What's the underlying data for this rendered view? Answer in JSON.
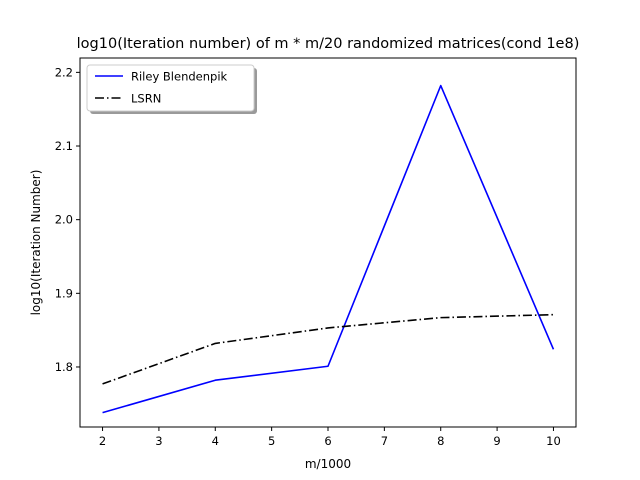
{
  "chart_data": {
    "type": "line",
    "title": "log10(Iteration number) of m * m/20 randomized matrices(cond 1e8)",
    "xlabel": "m/1000",
    "ylabel": "log10(Iteration Number)",
    "xlim": [
      1.6,
      10.4
    ],
    "ylim": [
      1.7185,
      2.2195
    ],
    "xticks": [
      2,
      3,
      4,
      5,
      6,
      7,
      8,
      9,
      10
    ],
    "yticks": [
      1.8,
      1.9,
      2.0,
      2.1,
      2.2
    ],
    "xtick_labels": [
      "2",
      "3",
      "4",
      "5",
      "6",
      "7",
      "8",
      "9",
      "10"
    ],
    "ytick_labels": [
      "1.8",
      "1.9",
      "2.0",
      "2.1",
      "2.2"
    ],
    "grid": false,
    "legend": {
      "position": "top-left",
      "shadow": true
    },
    "x": [
      2,
      4,
      6,
      8,
      10
    ],
    "series": [
      {
        "name": "Riley Blendenpik",
        "values": [
          1.738,
          1.782,
          1.801,
          2.182,
          1.824
        ],
        "color": "#0000ff",
        "linestyle": "solid"
      },
      {
        "name": "LSRN",
        "values": [
          1.777,
          1.832,
          1.853,
          1.867,
          1.871
        ],
        "color": "#000000",
        "linestyle": "dashdot"
      }
    ]
  }
}
